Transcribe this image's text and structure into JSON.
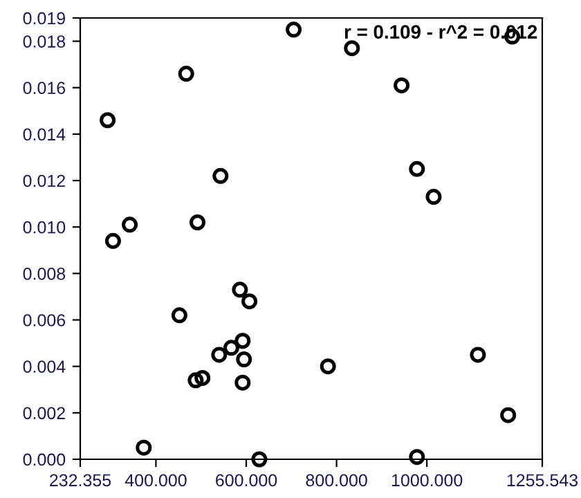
{
  "chart_data": {
    "type": "scatter",
    "x": [
      293,
      305,
      342,
      373,
      467,
      452,
      492,
      488,
      503,
      543,
      540,
      567,
      586,
      607,
      592,
      595,
      592,
      629,
      705,
      781,
      834,
      944,
      978,
      978,
      1015,
      1113,
      1189,
      1180
    ],
    "series": [
      {
        "color": "#000000",
        "values": [
          0.0146,
          0.0094,
          0.0101,
          0.0005,
          0.0166,
          0.0062,
          0.0102,
          0.0034,
          0.0035,
          0.0122,
          0.0045,
          0.0048,
          0.0073,
          0.0068,
          0.0051,
          0.0043,
          0.0033,
          0.0,
          0.0185,
          0.004,
          0.0177,
          0.0161,
          0.0125,
          0.0001,
          0.0113,
          0.0045,
          0.0182,
          0.0019
        ]
      }
    ],
    "marker": "circle",
    "xlim": [
      232.355,
      1255.543
    ],
    "xticks": [
      {
        "value": 232.355,
        "label": "232.355"
      },
      {
        "value": 400,
        "label": "400.000"
      },
      {
        "value": 600,
        "label": "600.000"
      },
      {
        "value": 800,
        "label": "800.000"
      },
      {
        "value": 1000,
        "label": "1000.000"
      },
      {
        "value": 1255.543,
        "label": "1255.543"
      }
    ],
    "ylim": [
      0,
      0.019
    ],
    "yticks": [
      {
        "value": 0,
        "label": "0.000"
      },
      {
        "value": 0.002,
        "label": "0.002"
      },
      {
        "value": 0.004,
        "label": "0.004"
      },
      {
        "value": 0.006,
        "label": "0.006"
      },
      {
        "value": 0.008,
        "label": "0.008"
      },
      {
        "value": 0.01,
        "label": "0.010"
      },
      {
        "value": 0.012,
        "label": "0.012"
      },
      {
        "value": 0.014,
        "label": "0.014"
      },
      {
        "value": 0.016,
        "label": "0.016"
      },
      {
        "value": 0.018,
        "label": "0.018"
      },
      {
        "value": 0.019,
        "label": "0.019"
      }
    ],
    "annotations": [
      "r = 0.109 - r^2 = 0.012"
    ]
  }
}
